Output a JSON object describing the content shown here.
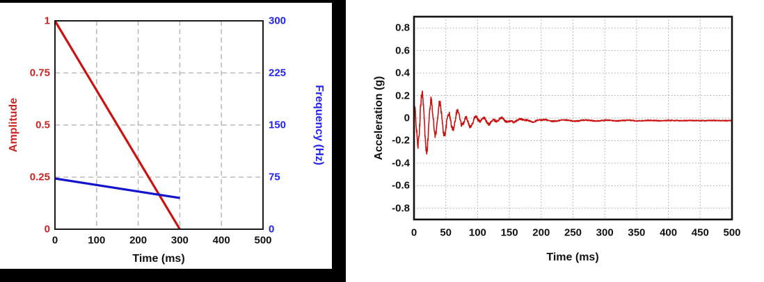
{
  "colors": {
    "figure_frame": "#000000",
    "plot_frame": "#1a1a1a",
    "grid_dashed": "#bbbbbb",
    "grid_dotted": "#a3a3a3",
    "red_line": "#cc1111",
    "red_label": "#cc2222",
    "blue_line": "#1414cc",
    "blue_label": "#2222ee",
    "black_label": "#111111"
  },
  "chart_data": [
    {
      "type": "line",
      "title": "",
      "xlabel": "Time (ms)",
      "ylabel_left": "Amplitude",
      "ylabel_right": "Frequency (Hz)",
      "xlim": [
        0,
        500
      ],
      "xticks": [
        "0",
        "100",
        "200",
        "300",
        "400",
        "500"
      ],
      "ylim_left": [
        0,
        1
      ],
      "yticks_left": [
        "0",
        "0.25",
        "0.5",
        "0.75",
        "1"
      ],
      "ylim_right": [
        0,
        300
      ],
      "yticks_right": [
        "0",
        "75",
        "150",
        "225",
        "300"
      ],
      "grid": "dashed",
      "legend": "none",
      "series": [
        {
          "name": "Amplitude",
          "axis": "left",
          "color": "#cc1111",
          "points": [
            [
              0,
              1.0
            ],
            [
              300,
              0.0
            ]
          ]
        },
        {
          "name": "Frequency (Hz)",
          "axis": "right",
          "color": "#1414cc",
          "points": [
            [
              0,
              73
            ],
            [
              300,
              45
            ]
          ]
        }
      ]
    },
    {
      "type": "line",
      "title": "",
      "xlabel": "Time (ms)",
      "ylabel": "Acceleration (g)",
      "xlim": [
        0,
        500
      ],
      "xticks": [
        "0",
        "50",
        "100",
        "150",
        "200",
        "250",
        "300",
        "350",
        "400",
        "450",
        "500"
      ],
      "ylim": [
        -0.9,
        0.9
      ],
      "yticks": [
        "-0.8",
        "-0.6",
        "-0.4",
        "-0.2",
        "0",
        "0.2",
        "0.4",
        "0.6",
        "0.8"
      ],
      "grid": "dotted",
      "legend": "none",
      "signal": {
        "description": "decaying ring-down oscillation with noise floor",
        "color": "#cc1111",
        "baseline_g": -0.022,
        "peak_g": 0.26,
        "min_g": -0.29,
        "peak_time_ms": 10,
        "min_time_ms": 14,
        "ring_freq_hz": 72,
        "ring_phase_rad": 2.0,
        "rise_ms": 4,
        "decay_ms": 38,
        "wobble_amp_g": 0.05,
        "wobble_freq_hz": 30,
        "wobble_decay_ms": 110,
        "noise_floor_g": 0.004,
        "noise_burst_g": 0.04,
        "noise_decay_ms": 70,
        "settled_after_ms": 250
      }
    }
  ]
}
